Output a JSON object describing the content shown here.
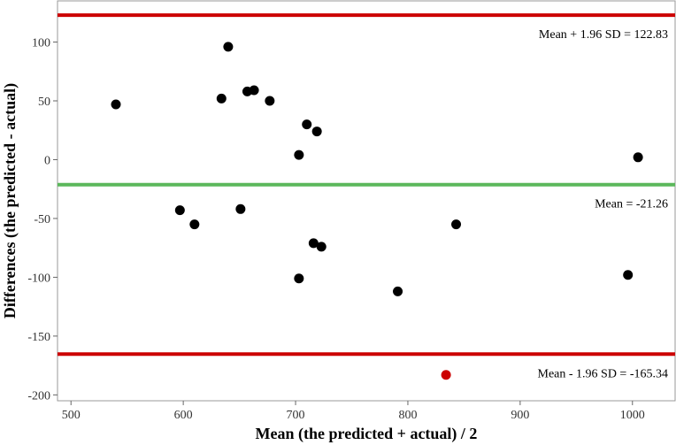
{
  "chart_data": {
    "type": "scatter",
    "title": "",
    "xlabel": "Mean (the predicted + actual) / 2",
    "ylabel": "Differences (the predicted - actual)",
    "xlim": [
      488,
      1038
    ],
    "ylim": [
      -205,
      135
    ],
    "xticks": [
      500,
      600,
      700,
      800,
      900,
      1000
    ],
    "yticks": [
      100,
      50,
      0,
      -50,
      -100,
      -150,
      -200
    ],
    "grid": false,
    "points": [
      {
        "x": 540,
        "y": 47
      },
      {
        "x": 597,
        "y": -43
      },
      {
        "x": 610,
        "y": -55
      },
      {
        "x": 634,
        "y": 52
      },
      {
        "x": 640,
        "y": 96
      },
      {
        "x": 651,
        "y": -42
      },
      {
        "x": 657,
        "y": 58
      },
      {
        "x": 663,
        "y": 59
      },
      {
        "x": 677,
        "y": 50
      },
      {
        "x": 703,
        "y": 4
      },
      {
        "x": 703,
        "y": -101
      },
      {
        "x": 710,
        "y": 30
      },
      {
        "x": 716,
        "y": -71
      },
      {
        "x": 719,
        "y": 24
      },
      {
        "x": 723,
        "y": -74
      },
      {
        "x": 791,
        "y": -112
      },
      {
        "x": 843,
        "y": -55
      },
      {
        "x": 996,
        "y": -98
      },
      {
        "x": 1005,
        "y": 2
      },
      {
        "x": 834,
        "y": -183,
        "color": "#cc0000"
      }
    ],
    "point_color": "#000000",
    "reference_lines": [
      {
        "value": 122.83,
        "label": "Mean + 1.96 SD = 122.83",
        "color": "#cc0000"
      },
      {
        "value": -21.26,
        "label": "Mean = -21.26",
        "color": "#5cb85c"
      },
      {
        "value": -165.34,
        "label": "Mean - 1.96 SD = -165.34",
        "color": "#cc0000"
      }
    ]
  }
}
